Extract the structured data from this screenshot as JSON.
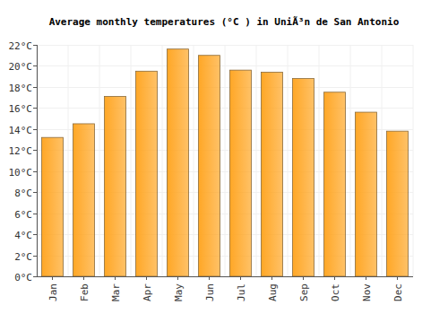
{
  "chart_data": {
    "type": "bar",
    "title": "Average monthly temperatures (°C ) in UniÃ³n de San Antonio",
    "categories": [
      "Jan",
      "Feb",
      "Mar",
      "Apr",
      "May",
      "Jun",
      "Jul",
      "Aug",
      "Sep",
      "Oct",
      "Nov",
      "Dec"
    ],
    "values": [
      13.2,
      14.5,
      17.1,
      19.5,
      21.6,
      21.0,
      19.6,
      19.4,
      18.8,
      17.5,
      15.6,
      13.8
    ],
    "color": "#ffa726",
    "ylim": [
      0,
      22
    ],
    "yticks": [
      {
        "value": 0,
        "label": "0°C"
      },
      {
        "value": 2,
        "label": "2°C"
      },
      {
        "value": 4,
        "label": "4°C"
      },
      {
        "value": 6,
        "label": "6°C"
      },
      {
        "value": 8,
        "label": "8°C"
      },
      {
        "value": 10,
        "label": "10°C"
      },
      {
        "value": 12,
        "label": "12°C"
      },
      {
        "value": 14,
        "label": "14°C"
      },
      {
        "value": 16,
        "label": "16°C"
      },
      {
        "value": 18,
        "label": "18°C"
      },
      {
        "value": 20,
        "label": "20°C"
      },
      {
        "value": 22,
        "label": "22°C"
      }
    ],
    "grid": true
  }
}
